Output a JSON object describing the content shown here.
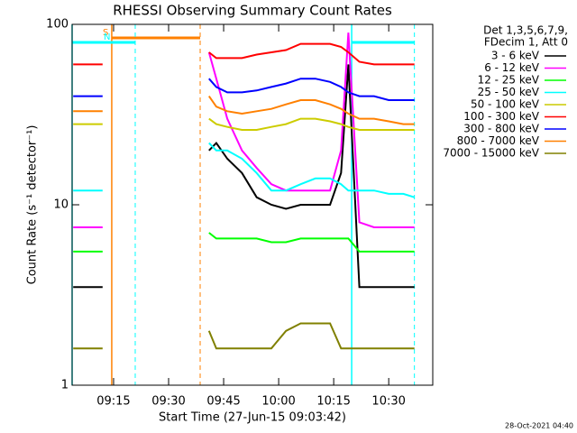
{
  "chart_data": {
    "type": "line",
    "title": "RHESSI Observing Summary Count Rates",
    "x_label": "Start Time (27-Jun-15 09:03:42)",
    "y_label": "Count Rate (s⁻¹ detector⁻¹)",
    "footer": "28-Oct-2021 04:40",
    "legend_header": [
      "Det 1,3,5,6,7,9,",
      "FDecim 1, Att 0"
    ],
    "log_y": true,
    "xlim": [
      3.7,
      102
    ],
    "xticks": [
      {
        "value": 15,
        "label": "09:15"
      },
      {
        "value": 30,
        "label": "09:30"
      },
      {
        "value": 45,
        "label": "09:45"
      },
      {
        "value": 60,
        "label": "10:00"
      },
      {
        "value": 75,
        "label": "10:15"
      },
      {
        "value": 90,
        "label": "10:30"
      }
    ],
    "ylim": [
      1,
      100
    ],
    "yticks": [
      1,
      10,
      100
    ],
    "flags": [
      {
        "label": "S",
        "color": "#ff8000",
        "start": 14.5,
        "end": 38.6
      },
      {
        "label": "N",
        "color": "#00ffff",
        "start": 3.7,
        "end": 20.9
      },
      {
        "color": "#00ffff",
        "start": 79.9,
        "end": 97
      }
    ],
    "x": [
      4,
      8,
      12,
      26,
      41,
      43,
      46,
      50,
      54,
      58,
      62,
      66,
      70,
      74,
      77,
      79,
      82,
      86,
      90,
      94,
      97
    ],
    "series": [
      {
        "name": "3 - 6 keV",
        "color": "#000000",
        "values": [
          3.5,
          3.5,
          3.5,
          null,
          20,
          22,
          18,
          15,
          11,
          10,
          9.5,
          10,
          10,
          10,
          15,
          60,
          3.5,
          3.5,
          3.5,
          3.5,
          3.5
        ]
      },
      {
        "name": "6 - 12 keV",
        "color": "#ff00ff",
        "values": [
          7.5,
          7.5,
          7.5,
          null,
          70,
          50,
          30,
          20,
          16,
          13,
          12,
          12,
          12,
          12,
          20,
          90,
          8,
          7.5,
          7.5,
          7.5,
          7.5
        ]
      },
      {
        "name": "12 - 25 keV",
        "color": "#00ff00",
        "values": [
          5.5,
          5.5,
          5.5,
          null,
          7,
          6.5,
          6.5,
          6.5,
          6.5,
          6.2,
          6.2,
          6.5,
          6.5,
          6.5,
          6.5,
          6.5,
          5.5,
          5.5,
          5.5,
          5.5,
          5.5
        ]
      },
      {
        "name": "25 - 50 keV",
        "color": "#00ffff",
        "values": [
          12,
          12,
          12,
          null,
          22,
          20,
          20,
          18,
          15,
          12,
          12,
          13,
          14,
          14,
          13,
          12,
          12,
          12,
          11.5,
          11.5,
          11
        ]
      },
      {
        "name": "50 - 100 keV",
        "color": "#cccc00",
        "values": [
          28,
          28,
          28,
          null,
          30,
          28,
          27,
          26,
          26,
          27,
          28,
          30,
          30,
          29,
          28,
          27,
          26,
          26,
          26,
          26,
          26
        ]
      },
      {
        "name": "100 - 300 keV",
        "color": "#ff0000",
        "values": [
          60,
          60,
          60,
          null,
          70,
          65,
          65,
          65,
          68,
          70,
          72,
          78,
          78,
          78,
          75,
          70,
          62,
          60,
          60,
          60,
          60
        ]
      },
      {
        "name": "300 - 800 keV",
        "color": "#0000ff",
        "values": [
          40,
          40,
          40,
          null,
          50,
          45,
          42,
          42,
          43,
          45,
          47,
          50,
          50,
          48,
          45,
          42,
          40,
          40,
          38,
          38,
          38
        ]
      },
      {
        "name": "800 - 7000 keV",
        "color": "#ff8000",
        "values": [
          33,
          33,
          33,
          null,
          40,
          35,
          33,
          32,
          33,
          34,
          36,
          38,
          38,
          36,
          34,
          32,
          30,
          30,
          29,
          28,
          28
        ]
      },
      {
        "name": "7000 - 15000 keV",
        "color": "#808000",
        "values": [
          1.6,
          1.6,
          1.6,
          null,
          2,
          1.6,
          1.6,
          1.6,
          1.6,
          1.6,
          2,
          2.2,
          2.2,
          2.2,
          1.6,
          1.6,
          1.6,
          1.6,
          1.6,
          1.6,
          1.6
        ]
      }
    ]
  }
}
